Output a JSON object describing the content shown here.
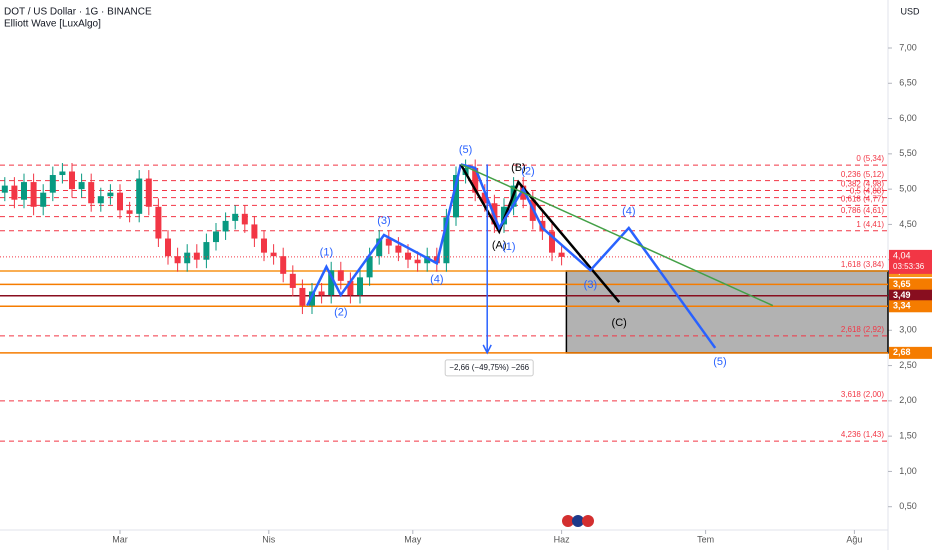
{
  "chart_data": {
    "type": "candlestick",
    "title": "DOT / US Dollar · 1G · BINANCE",
    "subtitle": "Elliott Wave [LuxAlgo]",
    "currency": "USD",
    "up_color": "#089981",
    "down_color": "#f23645",
    "xlim": [
      0,
      185
    ],
    "ylim": [
      0.17,
      7.68
    ],
    "xticks": [
      {
        "value": 25,
        "label": "Mar"
      },
      {
        "value": 56,
        "label": "Nis"
      },
      {
        "value": 86,
        "label": "May"
      },
      {
        "value": 117,
        "label": "Haz"
      },
      {
        "value": 147,
        "label": "Tem"
      },
      {
        "value": 178,
        "label": "Ağu"
      }
    ],
    "yticks": [
      {
        "value": 7,
        "label": "7,00"
      },
      {
        "value": 6.5,
        "label": "6,50"
      },
      {
        "value": 6,
        "label": "6,00"
      },
      {
        "value": 5.5,
        "label": "5,50"
      },
      {
        "value": 5,
        "label": "5,00"
      },
      {
        "value": 4.5,
        "label": "4,50"
      },
      {
        "value": 4,
        "label": "4,00"
      },
      {
        "value": 3.5,
        "label": "3,50"
      },
      {
        "value": 3,
        "label": "3,00"
      },
      {
        "value": 2.5,
        "label": "2,50"
      },
      {
        "value": 2,
        "label": "2,00"
      },
      {
        "value": 1.5,
        "label": "1,50"
      },
      {
        "value": 1,
        "label": "1,00"
      },
      {
        "value": 0.5,
        "label": "0,50"
      }
    ],
    "grid": false,
    "x": [
      1,
      3,
      5,
      7,
      9,
      11,
      13,
      15,
      17,
      19,
      21,
      23,
      25,
      27,
      29,
      31,
      33,
      35,
      37,
      39,
      41,
      43,
      45,
      47,
      49,
      51,
      53,
      55,
      57,
      59,
      61,
      63,
      65,
      67,
      69,
      71,
      73,
      75,
      77,
      79,
      81,
      83,
      85,
      87,
      89,
      91,
      93,
      95,
      97,
      99,
      101,
      103,
      105,
      107,
      109,
      111,
      113,
      115,
      117
    ],
    "open": [
      4.95,
      5.05,
      4.85,
      5.1,
      4.75,
      4.95,
      5.2,
      5.25,
      5.0,
      5.1,
      4.8,
      4.9,
      4.95,
      4.7,
      4.65,
      5.15,
      4.75,
      4.3,
      4.05,
      3.95,
      4.1,
      4.0,
      4.25,
      4.4,
      4.55,
      4.65,
      4.5,
      4.3,
      4.1,
      4.05,
      3.8,
      3.6,
      3.35,
      3.55,
      3.5,
      3.85,
      3.7,
      3.5,
      3.75,
      4.05,
      4.3,
      4.2,
      4.1,
      4.0,
      3.95,
      4.05,
      3.95,
      4.6,
      5.2,
      5.3,
      4.95,
      4.8,
      4.5,
      4.75,
      5.05,
      4.85,
      4.55,
      4.4,
      4.1
    ],
    "high": [
      5.17,
      5.17,
      5.22,
      5.22,
      5.07,
      5.32,
      5.37,
      5.37,
      5.22,
      5.22,
      5.02,
      5.07,
      5.07,
      4.82,
      5.27,
      5.27,
      4.87,
      4.42,
      4.17,
      4.22,
      4.22,
      4.37,
      4.52,
      4.67,
      4.77,
      4.77,
      4.62,
      4.42,
      4.22,
      4.17,
      3.92,
      3.72,
      3.67,
      3.67,
      3.97,
      3.97,
      3.82,
      3.87,
      4.17,
      4.42,
      4.42,
      4.32,
      4.22,
      4.12,
      4.17,
      4.17,
      4.72,
      5.32,
      5.42,
      5.42,
      5.07,
      4.92,
      4.87,
      5.17,
      5.17,
      4.97,
      4.67,
      4.52,
      4.22
    ],
    "low": [
      4.83,
      4.73,
      4.73,
      4.63,
      4.63,
      4.83,
      5.08,
      4.88,
      4.88,
      4.68,
      4.68,
      4.78,
      4.58,
      4.53,
      4.53,
      4.63,
      4.18,
      3.93,
      3.83,
      3.83,
      3.88,
      3.88,
      4.13,
      4.28,
      4.43,
      4.38,
      4.18,
      3.98,
      3.93,
      3.68,
      3.48,
      3.23,
      3.23,
      3.38,
      3.38,
      3.58,
      3.38,
      3.38,
      3.63,
      3.93,
      4.08,
      3.98,
      3.88,
      3.83,
      3.83,
      3.83,
      3.83,
      4.48,
      5.08,
      4.83,
      4.68,
      4.38,
      4.38,
      4.63,
      4.73,
      4.43,
      4.28,
      3.98,
      3.92
    ],
    "close": [
      5.05,
      4.85,
      5.1,
      4.75,
      4.95,
      5.2,
      5.25,
      5.0,
      5.1,
      4.8,
      4.9,
      4.95,
      4.7,
      4.65,
      5.15,
      4.75,
      4.3,
      4.05,
      3.95,
      4.1,
      4.0,
      4.25,
      4.4,
      4.55,
      4.65,
      4.5,
      4.3,
      4.1,
      4.05,
      3.8,
      3.6,
      3.35,
      3.55,
      3.5,
      3.85,
      3.7,
      3.5,
      3.75,
      4.05,
      4.3,
      4.2,
      4.1,
      4.0,
      3.95,
      4.05,
      3.95,
      4.6,
      5.2,
      5.3,
      4.95,
      4.8,
      4.5,
      4.75,
      5.05,
      4.85,
      4.55,
      4.4,
      4.1,
      4.04
    ],
    "fib_levels": [
      {
        "value": 5.34,
        "label": "0 (5,34)"
      },
      {
        "value": 5.12,
        "label": "0,236 (5,12)"
      },
      {
        "value": 4.98,
        "label": "0,382 (4,98)"
      },
      {
        "value": 4.88,
        "label": "0,5 (4,88)"
      },
      {
        "value": 4.77,
        "label": "0,618 (4,77)"
      },
      {
        "value": 4.61,
        "label": "0,786 (4,61)"
      },
      {
        "value": 4.41,
        "label": "1 (4,41)"
      },
      {
        "value": 3.84,
        "label": "1,618 (3,84)"
      },
      {
        "value": 2.92,
        "label": "2,618 (2,92)"
      },
      {
        "value": 2.0,
        "label": "3,618 (2,00)"
      },
      {
        "value": 1.43,
        "label": "4,236 (1,43)"
      }
    ],
    "price_lines": [
      {
        "value": 3.84,
        "label": "3,84",
        "color": "#f7931a"
      },
      {
        "value": 3.65,
        "label": "3,65",
        "color": "#f57c00"
      },
      {
        "value": 3.49,
        "label": "3,49",
        "color": "#880e1f"
      },
      {
        "value": 3.34,
        "label": "3,34",
        "color": "#f57c00"
      },
      {
        "value": 2.68,
        "label": "2,68",
        "color": "#f57c00"
      }
    ],
    "last_price": {
      "value": 4.04,
      "label": "4,04",
      "countdown": "03:53:36",
      "color": "#f23645"
    },
    "box": {
      "x": 118,
      "top": 3.84,
      "bottom": 2.68
    },
    "waves": [
      {
        "color": "#2962ff",
        "x": [
          64,
          68,
          71,
          80,
          91,
          96
        ],
        "y": [
          3.35,
          3.9,
          3.5,
          4.35,
          3.95,
          5.35
        ]
      },
      {
        "color": "#000000",
        "x": [
          96,
          104,
          108,
          129
        ],
        "y": [
          5.35,
          4.4,
          5.1,
          3.4
        ]
      },
      {
        "color": "#2962ff",
        "x": [
          96,
          99,
          104,
          109,
          113,
          123,
          131,
          149
        ],
        "y": [
          5.35,
          5.3,
          4.45,
          5.0,
          4.45,
          3.85,
          4.45,
          2.75
        ]
      },
      {
        "color": "#43a047",
        "x": [
          96,
          161
        ],
        "y": [
          5.35,
          3.35
        ]
      }
    ],
    "wave_labels": [
      {
        "label": "(1)",
        "x": 68,
        "y": 4.1,
        "color": "#2962ff"
      },
      {
        "label": "(2)",
        "x": 71,
        "y": 3.25,
        "color": "#2962ff"
      },
      {
        "label": "(3)",
        "x": 80,
        "y": 4.55,
        "color": "#2962ff"
      },
      {
        "label": "(4)",
        "x": 91,
        "y": 3.72,
        "color": "#2962ff"
      },
      {
        "label": "(5)",
        "x": 97,
        "y": 5.55,
        "color": "#2962ff"
      },
      {
        "label": "(A)",
        "x": 104,
        "y": 4.2,
        "color": "#000000"
      },
      {
        "label": "(1)",
        "x": 106,
        "y": 4.18,
        "color": "#2962ff"
      },
      {
        "label": "(B)",
        "x": 108,
        "y": 5.3,
        "color": "#000000"
      },
      {
        "label": "(2)",
        "x": 110,
        "y": 5.25,
        "color": "#2962ff"
      },
      {
        "label": "(3)",
        "x": 123,
        "y": 3.64,
        "color": "#2962ff"
      },
      {
        "label": "(C)",
        "x": 129,
        "y": 3.1,
        "color": "#000000"
      },
      {
        "label": "(4)",
        "x": 131,
        "y": 4.68,
        "color": "#2962ff"
      },
      {
        "label": "(5)",
        "x": 150,
        "y": 2.55,
        "color": "#2962ff"
      }
    ],
    "measure": {
      "x": 101.5,
      "from": 5.35,
      "to": 2.68,
      "label": "−2,66 (−49,75%) −266"
    }
  }
}
